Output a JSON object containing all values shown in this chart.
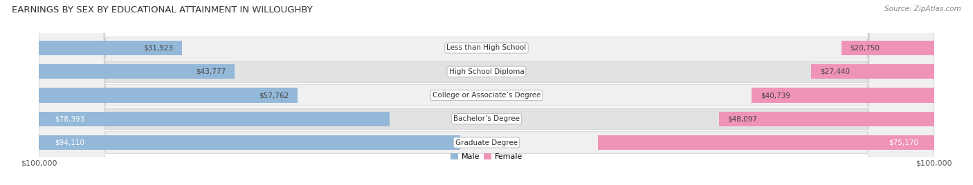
{
  "title": "EARNINGS BY SEX BY EDUCATIONAL ATTAINMENT IN WILLOUGHBY",
  "source": "Source: ZipAtlas.com",
  "categories": [
    "Less than High School",
    "High School Diploma",
    "College or Associate’s Degree",
    "Bachelor’s Degree",
    "Graduate Degree"
  ],
  "male_values": [
    31923,
    43777,
    57762,
    78393,
    94110
  ],
  "female_values": [
    20750,
    27440,
    40739,
    48097,
    75170
  ],
  "male_color": "#93b8d8",
  "female_color": "#f093b8",
  "row_bg_light": "#f0f0f0",
  "row_bg_dark": "#e2e2e2",
  "row_border": "#cccccc",
  "max_value": 100000,
  "background_color": "#ffffff",
  "male_inside_threshold": 65000,
  "female_inside_threshold": 65000
}
